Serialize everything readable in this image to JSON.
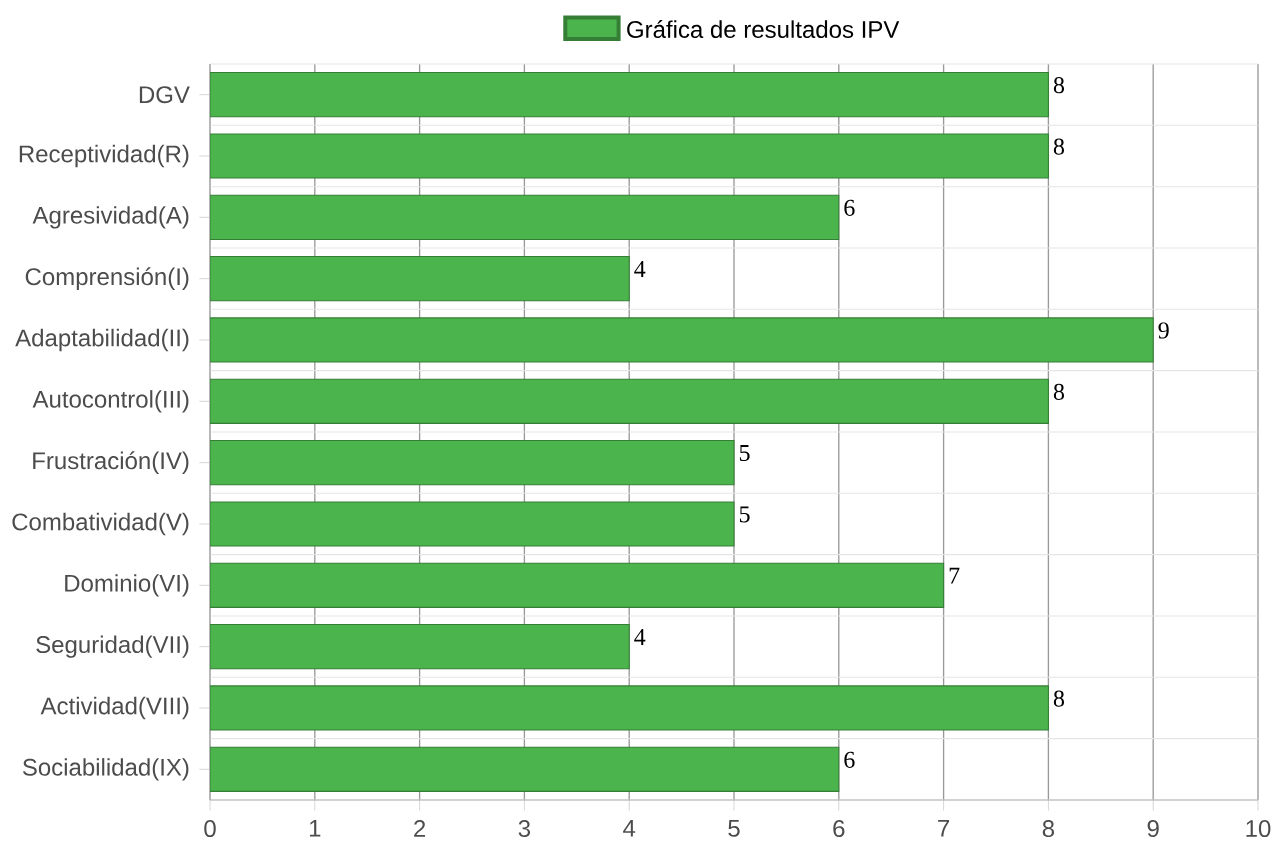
{
  "chart_data": {
    "type": "bar",
    "orientation": "horizontal",
    "categories": [
      "DGV",
      "Receptividad(R)",
      "Agresividad(A)",
      "Comprensión(I)",
      "Adaptabilidad(II)",
      "Autocontrol(III)",
      "Frustración(IV)",
      "Combatividad(V)",
      "Dominio(VI)",
      "Seguridad(VII)",
      "Actividad(VIII)",
      "Sociabilidad(IX)"
    ],
    "series": [
      {
        "name": "Gráfica de resultados IPV",
        "color": "#4cb44c",
        "values": [
          8,
          8,
          6,
          4,
          9,
          8,
          5,
          5,
          7,
          4,
          8,
          6
        ]
      }
    ],
    "xlim": [
      0,
      10
    ],
    "xticks": [
      0,
      1,
      2,
      3,
      4,
      5,
      6,
      7,
      8,
      9,
      10
    ],
    "grid": true,
    "legend": "top",
    "data_labels": true
  }
}
